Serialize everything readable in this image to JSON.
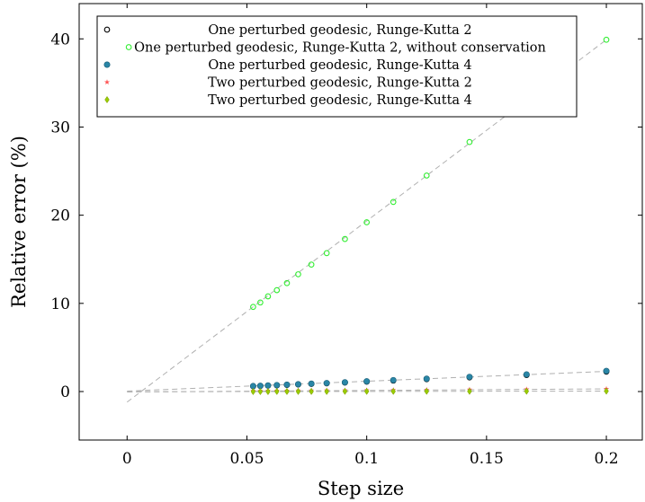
{
  "chart_data": {
    "type": "scatter",
    "xlabel": "Step size",
    "ylabel": "Relative error (%)",
    "xlim": [
      -0.02,
      0.215
    ],
    "ylim": [
      -5.5,
      44
    ],
    "xticks": [
      0,
      0.05,
      0.1,
      0.15,
      0.2
    ],
    "xtick_labels": [
      "0",
      "0.05",
      "0.1",
      "0.15",
      "0.2"
    ],
    "yticks": [
      0,
      10,
      20,
      30,
      40
    ],
    "ytick_labels": [
      "0",
      "10",
      "20",
      "30",
      "40"
    ],
    "grid": false,
    "legend_position": "top",
    "x": [
      0.0526,
      0.0556,
      0.0588,
      0.0625,
      0.0667,
      0.0714,
      0.0769,
      0.0833,
      0.0909,
      0.1,
      0.1111,
      0.125,
      0.1429,
      0.1667,
      0.2
    ],
    "series": [
      {
        "name": "One perturbed geodesic, Runge-Kutta 2",
        "marker": "open-circle",
        "color": "#000000",
        "values": [
          0.6,
          0.63,
          0.67,
          0.7,
          0.75,
          0.8,
          0.86,
          0.93,
          1.02,
          1.12,
          1.24,
          1.4,
          1.6,
          1.87,
          2.25
        ]
      },
      {
        "name": "One perturbed geodesic, Runge-Kutta 2, without conservation",
        "marker": "open-circle",
        "color": "#33ee33",
        "values": [
          9.6,
          10.1,
          10.8,
          11.5,
          12.3,
          13.3,
          14.4,
          15.7,
          17.3,
          19.2,
          21.5,
          24.5,
          28.3,
          33.3,
          39.9
        ]
      },
      {
        "name": "One perturbed geodesic, Runge-Kutta 4",
        "marker": "filled-circle",
        "color": "#2a86a6",
        "values": [
          0.62,
          0.65,
          0.69,
          0.73,
          0.78,
          0.83,
          0.89,
          0.96,
          1.05,
          1.16,
          1.29,
          1.45,
          1.66,
          1.94,
          2.33
        ]
      },
      {
        "name": "Two perturbed geodesic, Runge-Kutta 2",
        "marker": "star",
        "color": "#ff5555",
        "values": [
          0.08,
          0.08,
          0.09,
          0.09,
          0.1,
          0.11,
          0.12,
          0.13,
          0.14,
          0.15,
          0.17,
          0.19,
          0.22,
          0.25,
          0.3
        ]
      },
      {
        "name": "Two perturbed geodesic, Runge-Kutta 4",
        "marker": "diamond",
        "color": "#99cc00",
        "values": [
          0.0,
          0.0,
          0.0,
          0.01,
          0.01,
          0.01,
          0.01,
          0.01,
          0.02,
          0.02,
          0.02,
          0.03,
          0.03,
          0.04,
          0.05
        ]
      }
    ],
    "trend_lines": [
      {
        "from": [
          -0.0,
          -1.2
        ],
        "to": [
          0.2,
          39.9
        ]
      },
      {
        "from": [
          0.0,
          0.05
        ],
        "to": [
          0.2,
          2.29
        ]
      },
      {
        "from": [
          0.0,
          -0.05
        ],
        "to": [
          0.2,
          0.3
        ]
      },
      {
        "from": [
          0.0,
          -0.02
        ],
        "to": [
          0.2,
          0.05
        ]
      }
    ],
    "trend_line_color": "#b0b0b0"
  }
}
